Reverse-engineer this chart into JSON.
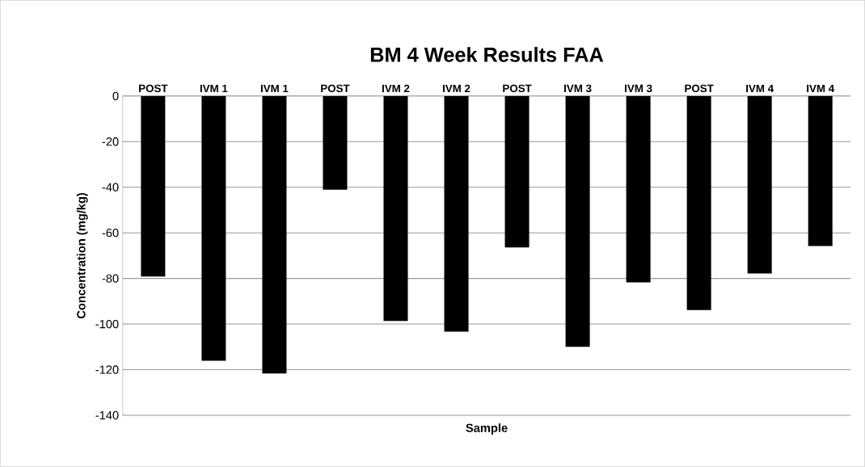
{
  "chart_data": {
    "type": "bar",
    "title": "BM 4 Week Results FAA",
    "xlabel": "Sample",
    "ylabel": "Concentration (mg/kg)",
    "categories": [
      "POST",
      "IVM 1",
      "IVM 1",
      "POST",
      "IVM 2",
      "IVM 2",
      "POST",
      "IVM 3",
      "IVM 3",
      "POST",
      "IVM 4",
      "IVM 4"
    ],
    "values": [
      -79.2,
      -116.1,
      -121.7,
      -41.1,
      -98.6,
      -103.3,
      -66.4,
      -110,
      -81.7,
      -93.9,
      -77.8,
      -65.8
    ],
    "color": "#000000",
    "ylim": [
      -140,
      0
    ],
    "yticks": [
      -140,
      -120,
      -100,
      -80,
      -60,
      -40,
      -20,
      0
    ],
    "grid": "y"
  }
}
